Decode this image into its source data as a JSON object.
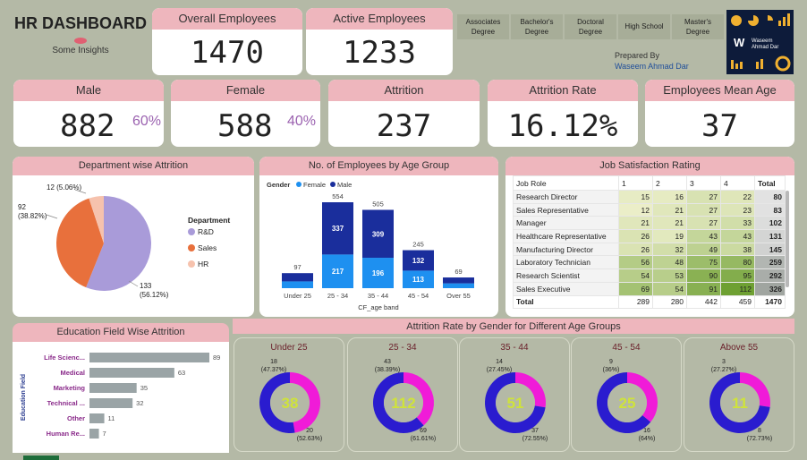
{
  "header": {
    "title": "HR DASHBOARD",
    "subtitle": "Some Insights",
    "prepared_by_label": "Prepared By",
    "prepared_by_name": "Waseem Ahmad Dar",
    "logo_text": "Waseem Ahmad Dar"
  },
  "kpis": {
    "overall": {
      "label": "Overall Employees",
      "value": "1470"
    },
    "active": {
      "label": "Active Employees",
      "value": "1233"
    },
    "male": {
      "label": "Male",
      "value": "882",
      "pct": "60%"
    },
    "female": {
      "label": "Female",
      "value": "588",
      "pct": "40%"
    },
    "attrition": {
      "label": "Attrition",
      "value": "237"
    },
    "attrition_rate": {
      "label": "Attrition Rate",
      "value": "16.12%"
    },
    "mean_age": {
      "label": "Employees Mean Age",
      "value": "37"
    }
  },
  "education_buttons": [
    "Associates Degree",
    "Bachelor's Degree",
    "Doctoral Degree",
    "High School",
    "Master's Degree"
  ],
  "dept_attrition": {
    "title": "Department wise Attrition",
    "legend_title": "Department",
    "slices": [
      {
        "name": "R&D",
        "value": 133,
        "label": "133",
        "pct": "(56.12%)",
        "color": "#a99bd9"
      },
      {
        "name": "Sales",
        "value": 92,
        "label": "92",
        "pct": "(38.82%)",
        "color": "#e8703c"
      },
      {
        "name": "HR",
        "value": 12,
        "label": "12",
        "pct": "(5.06%)",
        "color": "#f6c2ad"
      }
    ]
  },
  "age_group": {
    "title": "No. of Employees by Age Group",
    "legend_title": "Gender",
    "legend": [
      "Female",
      "Male"
    ],
    "colors": {
      "female": "#1e90f0",
      "male": "#1a2e9c"
    },
    "xlabel": "CF_age band",
    "categories": [
      "Under 25",
      "25 - 34",
      "35 - 44",
      "45 - 54",
      "Over 55"
    ],
    "female": [
      null,
      217,
      196,
      113,
      null
    ],
    "male": [
      null,
      337,
      309,
      132,
      null
    ],
    "totals": [
      97,
      554,
      505,
      245,
      69
    ]
  },
  "job_satisfaction": {
    "title": "Job Satisfaction Rating",
    "columns": [
      "Job Role",
      "1",
      "2",
      "3",
      "4",
      "Total"
    ],
    "rows": [
      [
        "Research Director",
        "15",
        "16",
        "27",
        "22",
        "80"
      ],
      [
        "Sales Representative",
        "12",
        "21",
        "27",
        "23",
        "83"
      ],
      [
        "Manager",
        "21",
        "21",
        "27",
        "33",
        "102"
      ],
      [
        "Healthcare Representative",
        "26",
        "19",
        "43",
        "43",
        "131"
      ],
      [
        "Manufacturing Director",
        "26",
        "32",
        "49",
        "38",
        "145"
      ],
      [
        "Laboratory Technician",
        "56",
        "48",
        "75",
        "80",
        "259"
      ],
      [
        "Research Scientist",
        "54",
        "53",
        "90",
        "95",
        "292"
      ],
      [
        "Sales Executive",
        "69",
        "54",
        "91",
        "112",
        "326"
      ]
    ],
    "total_row": [
      "Total",
      "289",
      "280",
      "442",
      "459",
      "1470"
    ]
  },
  "edu_field": {
    "title": "Education Field Wise Attrition",
    "axis_label": "Education Field",
    "categories": [
      "Life Scienc...",
      "Medical",
      "Marketing",
      "Technical ...",
      "Other",
      "Human Re..."
    ],
    "values": [
      89,
      63,
      35,
      32,
      11,
      7
    ],
    "bar_color": "#9aa4a6"
  },
  "gender_age": {
    "title": "Attrition Rate by Gender for Different Age Groups",
    "colors": {
      "a": "#2a1ccf",
      "b": "#f01bd8",
      "center": "#cfe33a"
    },
    "groups": [
      {
        "title": "Under 25",
        "center": "38",
        "a": 20,
        "b": 18,
        "a_label": "20",
        "a_pct": "(52.63%)",
        "b_label": "18",
        "b_pct": "(47.37%)"
      },
      {
        "title": "25 - 34",
        "center": "112",
        "a": 69,
        "b": 43,
        "a_label": "69",
        "a_pct": "(61.61%)",
        "b_label": "43",
        "b_pct": "(38.39%)"
      },
      {
        "title": "35 - 44",
        "center": "51",
        "a": 37,
        "b": 14,
        "a_label": "37",
        "a_pct": "(72.55%)",
        "b_label": "14",
        "b_pct": "(27.45%)"
      },
      {
        "title": "45 - 54",
        "center": "25",
        "a": 16,
        "b": 9,
        "a_label": "16",
        "a_pct": "(64%)",
        "b_label": "9",
        "b_pct": "(36%)"
      },
      {
        "title": "Above 55",
        "center": "11",
        "a": 8,
        "b": 3,
        "a_label": "8",
        "a_pct": "(72.73%)",
        "b_label": "3",
        "b_pct": "(27.27%)"
      }
    ]
  },
  "chart_data": [
    {
      "type": "pie",
      "title": "Department wise Attrition",
      "categories": [
        "R&D",
        "Sales",
        "HR"
      ],
      "values": [
        133,
        92,
        12
      ]
    },
    {
      "type": "bar",
      "title": "No. of Employees by Age Group",
      "xlabel": "CF_age band",
      "categories": [
        "Under 25",
        "25 - 34",
        "35 - 44",
        "45 - 54",
        "Over 55"
      ],
      "series": [
        {
          "name": "Female",
          "values": [
            null,
            217,
            196,
            113,
            null
          ]
        },
        {
          "name": "Male",
          "values": [
            null,
            337,
            309,
            132,
            null
          ]
        }
      ],
      "totals": [
        97,
        554,
        505,
        245,
        69
      ]
    },
    {
      "type": "bar",
      "title": "Education Field Wise Attrition",
      "ylabel": "Education Field",
      "categories": [
        "Life Scienc...",
        "Medical",
        "Marketing",
        "Technical ...",
        "Other",
        "Human Re..."
      ],
      "values": [
        89,
        63,
        35,
        32,
        11,
        7
      ]
    },
    {
      "type": "table",
      "title": "Job Satisfaction Rating"
    },
    {
      "type": "pie",
      "title": "Attrition Rate by Gender for Different Age Groups",
      "categories": [
        "Under 25",
        "25 - 34",
        "35 - 44",
        "45 - 54",
        "Above 55"
      ],
      "series": [
        {
          "values": [
            20,
            69,
            37,
            16,
            8
          ]
        },
        {
          "values": [
            18,
            43,
            14,
            9,
            3
          ]
        }
      ]
    }
  ]
}
